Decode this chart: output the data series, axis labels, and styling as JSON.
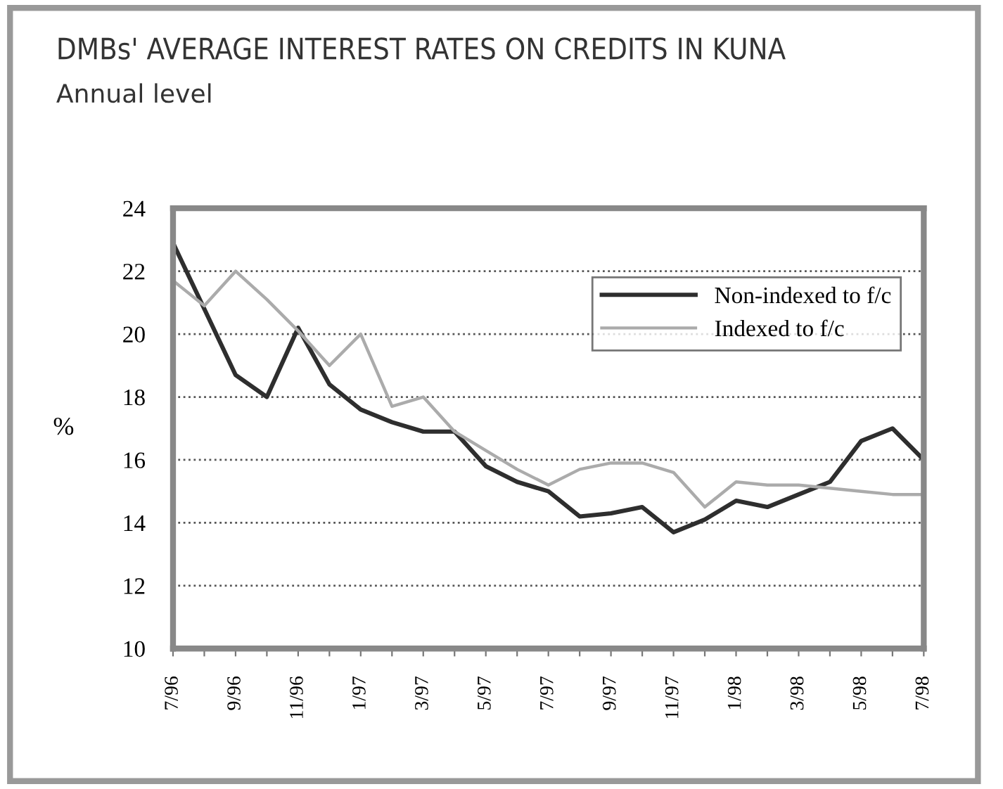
{
  "chart_data": {
    "type": "line",
    "title": "DMBs' AVERAGE INTEREST RATES ON CREDITS IN KUNA",
    "subtitle": "Annual level",
    "ylabel": "%",
    "categories": [
      "7/96",
      null,
      "9/96",
      null,
      "11/96",
      null,
      "1/97",
      null,
      "3/97",
      null,
      "5/97",
      null,
      "7/97",
      null,
      "9/97",
      null,
      "11/97",
      null,
      "1/98",
      null,
      "3/98",
      null,
      "5/98",
      null,
      "7/98"
    ],
    "series": [
      {
        "name": "Non-indexed to f/c",
        "color": "#2e2e2e",
        "values": [
          22.9,
          20.8,
          18.7,
          18.0,
          20.2,
          18.4,
          17.6,
          17.2,
          16.9,
          16.9,
          15.8,
          15.3,
          15.0,
          14.2,
          14.3,
          14.5,
          13.7,
          14.1,
          14.7,
          14.5,
          14.9,
          15.3,
          16.6,
          17.0,
          16.0
        ]
      },
      {
        "name": "Indexed to f/c",
        "color": "#ababab",
        "values": [
          21.7,
          20.9,
          22.0,
          21.1,
          20.1,
          19.0,
          20.0,
          17.7,
          18.0,
          16.9,
          16.3,
          15.7,
          15.2,
          15.7,
          15.9,
          15.9,
          15.6,
          14.5,
          15.3,
          15.2,
          15.2,
          15.1,
          15.0,
          14.9,
          14.9
        ]
      }
    ],
    "ylim": [
      10,
      24
    ],
    "yticks": [
      10,
      12,
      14,
      16,
      18,
      20,
      22,
      24
    ],
    "grid": "y",
    "legend": "top right",
    "line_style": "solid",
    "marker": "none"
  }
}
